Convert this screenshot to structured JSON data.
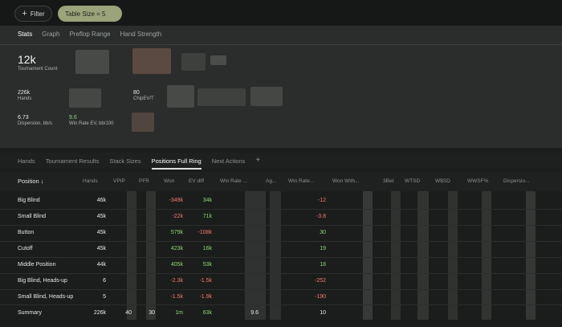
{
  "toolbar": {
    "filter_label": "Filter",
    "filter_icon": "plus-icon",
    "active_filter": "Table Size = 5"
  },
  "subtabs": [
    "Stats",
    "Graph",
    "Preflop Range",
    "Hand Strength"
  ],
  "stats": {
    "tournament_count": {
      "value": "12k",
      "label": "Tournament Count"
    },
    "hands": {
      "value": "226k",
      "label": "Hands"
    },
    "chip_ev": {
      "value": "80",
      "label": "ChipEV/T"
    },
    "dispersion": {
      "value": "6.73",
      "label": "Dispersion, bb/s"
    },
    "win_rate": {
      "value": "9.6",
      "label": "Win Rate EV, bb/100"
    }
  },
  "tabs": [
    "Hands",
    "Tournament Results",
    "Stack Sizes",
    "Positions Full Ring",
    "Next Actions"
  ],
  "add_tab_icon": "plus-icon",
  "columns": [
    "Position ↓",
    "Hands",
    "VPIP",
    "PFR",
    "Won",
    "EV diff",
    "Win Rate ...",
    "Ag...",
    "Win Rate...",
    "Won With...",
    "3Bet",
    "WTSD",
    "W$SD",
    "WWSF%",
    "Dispersio..."
  ],
  "rows": [
    {
      "name": "Big Blind",
      "hands": "46k",
      "won": "-349k",
      "ev": "34k",
      "wr": "-12"
    },
    {
      "name": "Small Blind",
      "hands": "45k",
      "won": "-22k",
      "ev": "71k",
      "wr": "-3.8"
    },
    {
      "name": "Button",
      "hands": "45k",
      "won": "579k",
      "ev": "-108k",
      "wr": "30"
    },
    {
      "name": "Cutoff",
      "hands": "45k",
      "won": "423k",
      "ev": "16k",
      "wr": "19"
    },
    {
      "name": "Middle Position",
      "hands": "44k",
      "won": "405k",
      "ev": "53k",
      "wr": "18"
    },
    {
      "name": "Big Blind, Heads-up",
      "hands": "6",
      "won": "-2.3k",
      "ev": "-1.5k",
      "wr": "-252"
    },
    {
      "name": "Small Blind, Heads-up",
      "hands": "5",
      "won": "-1.5k",
      "ev": "-1.9k",
      "wr": "-190"
    }
  ],
  "summary": {
    "name": "Summary",
    "hands": "226k",
    "vpip": "40",
    "pfr": "30",
    "won": "1m",
    "ev": "63k",
    "wr1": "9.6",
    "wr": "10"
  }
}
